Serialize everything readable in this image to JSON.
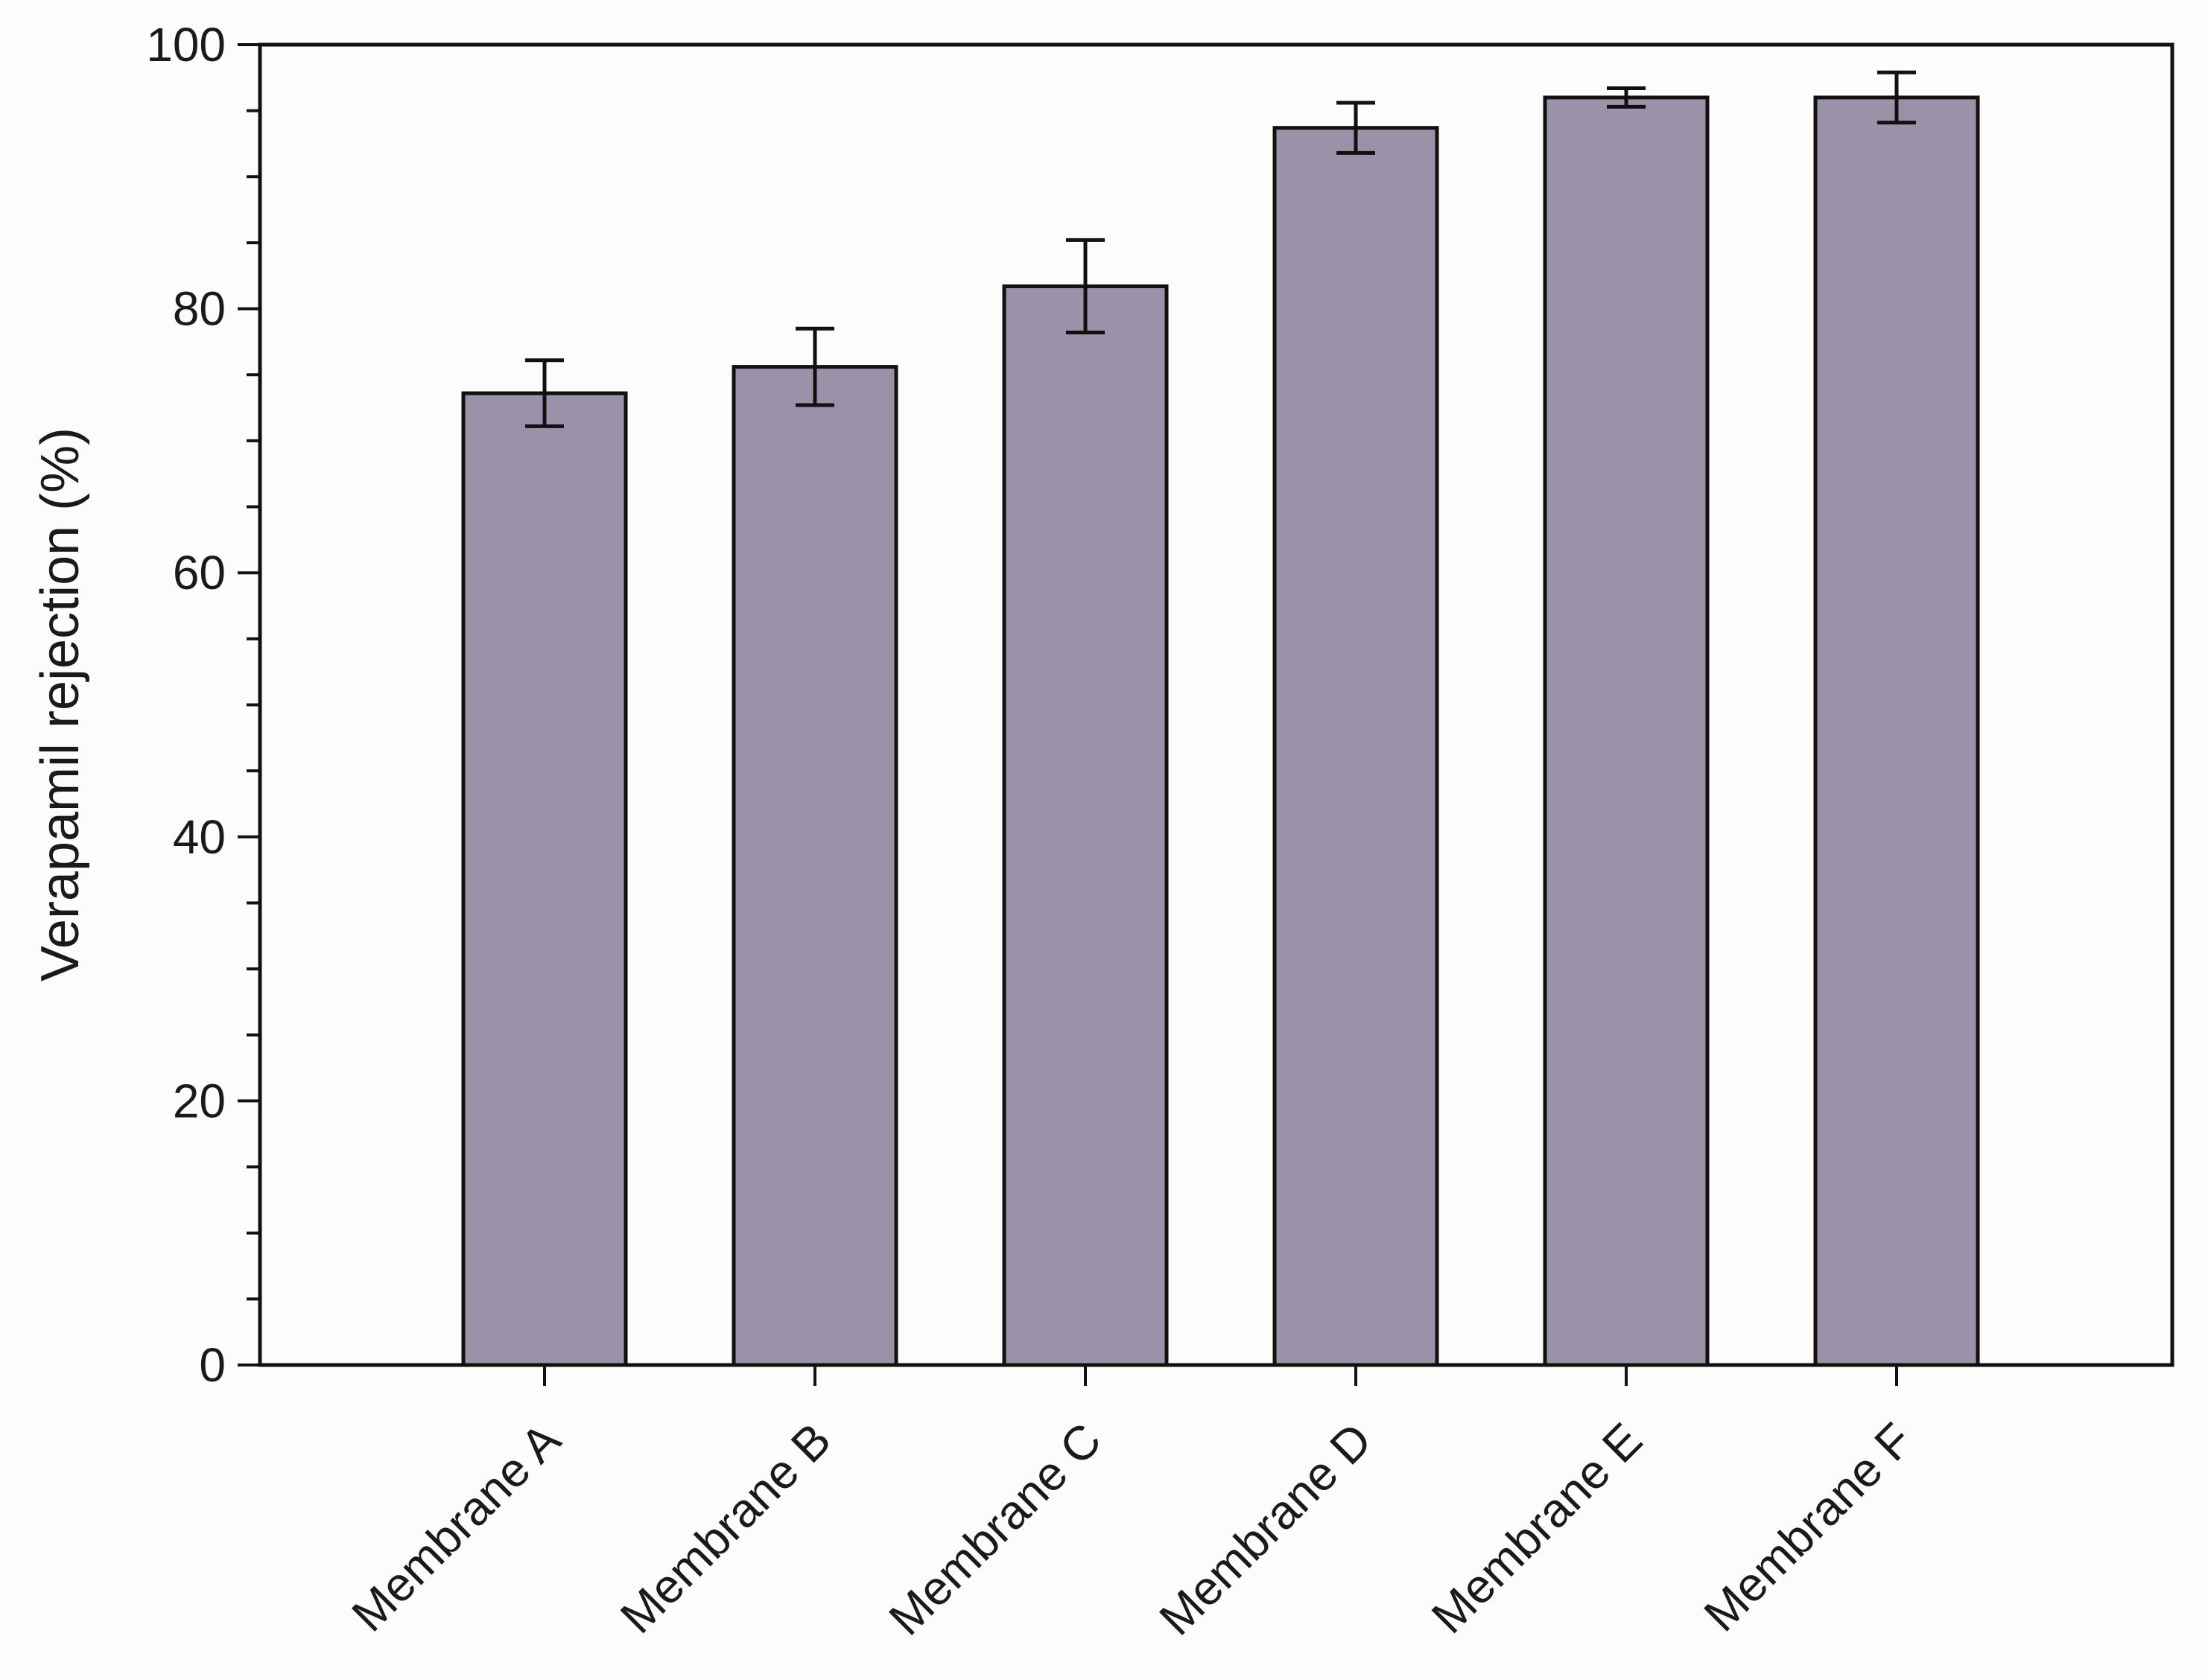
{
  "chart_data": {
    "type": "bar",
    "title": "",
    "xlabel": "",
    "ylabel": "Verapamil rejection (%)",
    "ylim": [
      0,
      100
    ],
    "yticks": [
      "0",
      "20",
      "40",
      "60",
      "80",
      "100"
    ],
    "categories": [
      "Membrane A",
      "Membrane B",
      "Membrane C",
      "Membrane D",
      "Membrane E",
      "Membrane F"
    ],
    "values": [
      73.6,
      75.6,
      81.7,
      93.7,
      96.0,
      96.0
    ],
    "errors": [
      2.5,
      2.9,
      3.5,
      1.9,
      0.7,
      1.9
    ],
    "bar_color": "#9b92aa",
    "edge_color": "#111111",
    "grid": false,
    "legend": "none"
  }
}
